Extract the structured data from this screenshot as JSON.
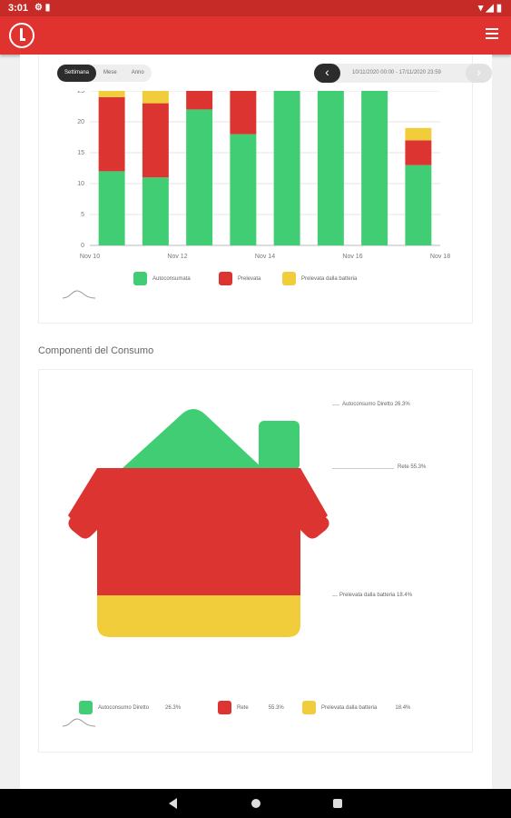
{
  "status_bar": {
    "time": "3:01"
  },
  "period_tabs": [
    "Settimana",
    "Mese",
    "Anno"
  ],
  "date_range": "10/11/2020 00:00 - 17/11/2020 23:59",
  "chart_data": {
    "type": "bar",
    "stacked": true,
    "categories": [
      "Nov 10",
      "Nov 11",
      "Nov 12",
      "Nov 13",
      "Nov 14",
      "Nov 15",
      "Nov 16",
      "Nov 17"
    ],
    "x_tick_labels": [
      "Nov 10",
      "Nov 12",
      "Nov 14",
      "Nov 16",
      "Nov 18"
    ],
    "y_tick_labels": [
      "0",
      "5",
      "10",
      "15",
      "20",
      "25"
    ],
    "ylim": [
      0,
      25
    ],
    "series": [
      {
        "name": "Autoconsumata",
        "color": "#41cd73",
        "values": [
          12,
          11,
          22,
          18,
          25,
          25,
          25,
          13
        ]
      },
      {
        "name": "Prelevata",
        "color": "#dc3430",
        "values": [
          12,
          12,
          3,
          7,
          0,
          0,
          0,
          4
        ]
      },
      {
        "name": "Prelevata dalla batteria",
        "color": "#f1cc3b",
        "values": [
          1,
          2,
          0,
          0,
          0,
          0,
          0,
          2
        ]
      }
    ],
    "grid": true,
    "legend": "bottom"
  },
  "consumption": {
    "title": "Componenti del Consumo",
    "items": [
      {
        "label": "Autoconsumo Diretto",
        "percent": "26.3%",
        "color": "#41cd73",
        "callout": "Autoconsumo Diretto 26.3%"
      },
      {
        "label": "Rete",
        "percent": "55.3%",
        "color": "#dc3430",
        "callout": "Rete 55.3%"
      },
      {
        "label": "Prelevata dalla batteria",
        "percent": "18.4%",
        "color": "#f1cc3b",
        "callout": "Prelevata dalla batteria 18.4%"
      }
    ]
  }
}
